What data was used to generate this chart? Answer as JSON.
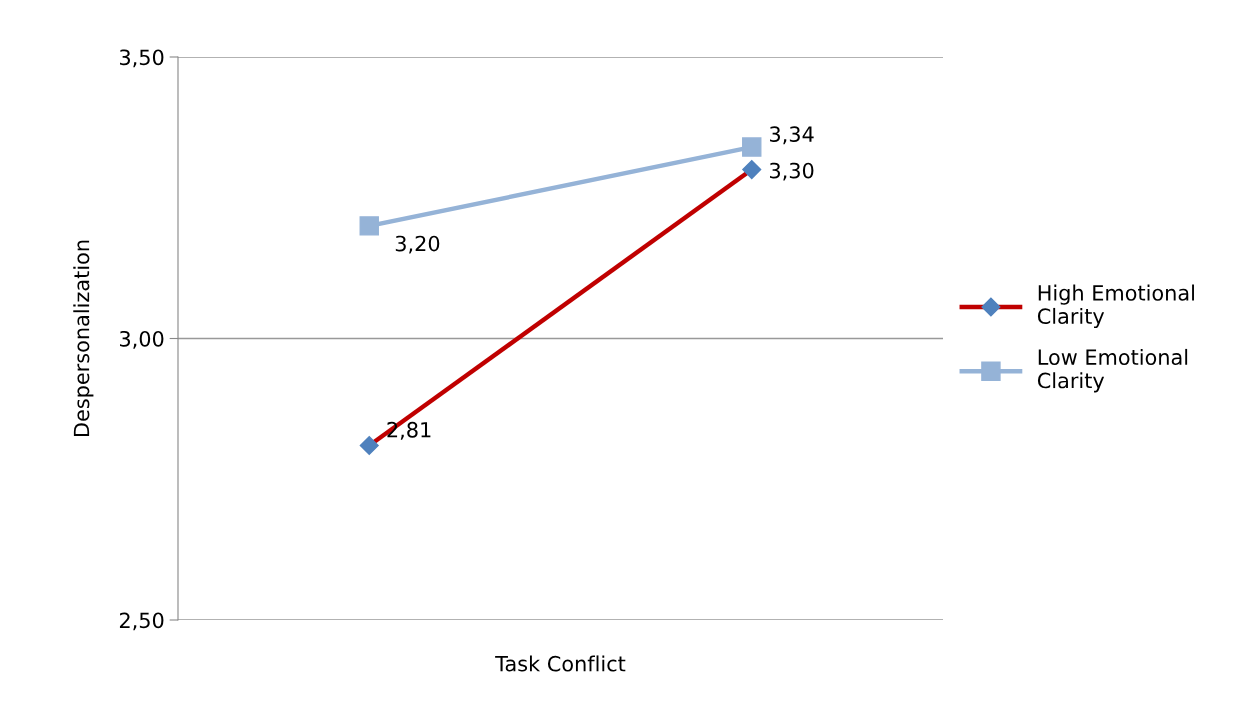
{
  "chart_data": {
    "type": "line",
    "xlabel": "Task Conflict",
    "ylabel": "Despersonalization",
    "categories": [
      null,
      null
    ],
    "series": [
      {
        "name": "High Emotional Clarity",
        "color": "#c00000",
        "colors": [
          "#4f81bd",
          "#4f81bd"
        ],
        "marker": "diamond",
        "values": [
          2.81,
          3.3
        ],
        "value_labels": [
          "2,81",
          "3,30"
        ]
      },
      {
        "name": "Low Emotional Clarity",
        "color": "#95b3d7",
        "marker": "square",
        "values": [
          3.2,
          3.34
        ],
        "value_labels": [
          "3,20",
          "3,34"
        ]
      }
    ],
    "ylim": [
      2.5,
      3.5
    ],
    "yticks": [
      {
        "value": 2.5,
        "label": "2,50"
      },
      {
        "value": 3.0,
        "label": "3,00"
      },
      {
        "value": 3.5,
        "label": "3,50"
      }
    ],
    "grid": "y",
    "legend": "right",
    "line_style": "solid"
  }
}
